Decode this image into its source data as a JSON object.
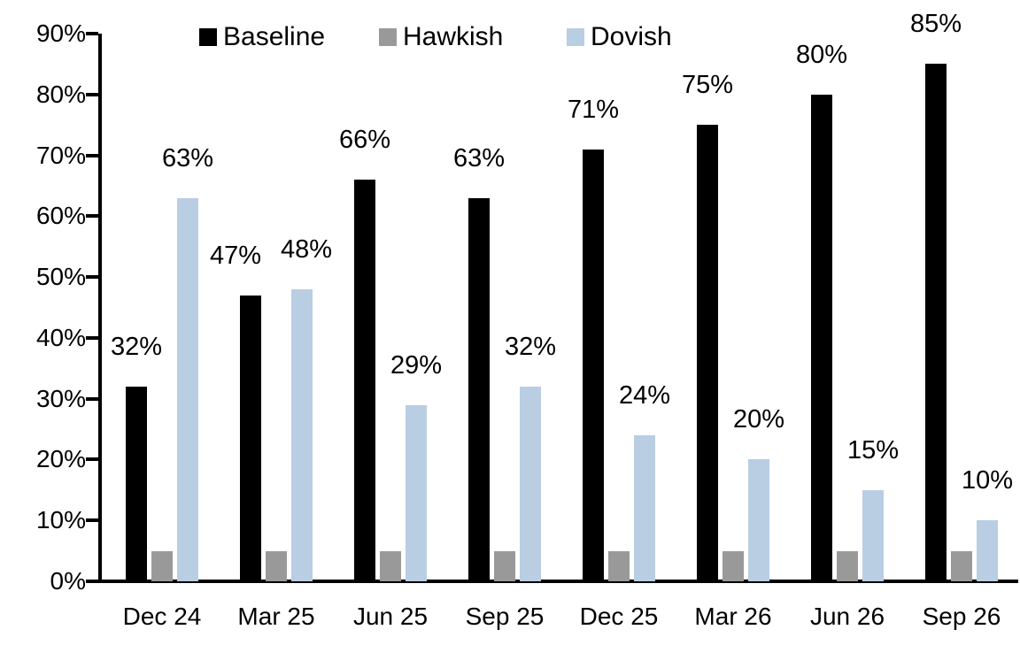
{
  "chart_data": {
    "type": "bar",
    "title": "",
    "categories": [
      "Dec 24",
      "Mar 25",
      "Jun 25",
      "Sep 25",
      "Dec 25",
      "Mar 26",
      "Jun 26",
      "Sep 26"
    ],
    "series": [
      {
        "name": "Baseline",
        "color": "#000000",
        "values": [
          32,
          47,
          66,
          63,
          71,
          75,
          80,
          85
        ],
        "data_labels": [
          "32%",
          "47%",
          "66%",
          "63%",
          "71%",
          "75%",
          "80%",
          "85%"
        ]
      },
      {
        "name": "Hawkish",
        "color": "#999999",
        "values": [
          5,
          5,
          5,
          5,
          5,
          5,
          5,
          5
        ],
        "data_labels": null,
        "values_note": "unlabeled, estimated from bar heights"
      },
      {
        "name": "Dovish",
        "color": "#b9cde3",
        "values": [
          63,
          48,
          29,
          32,
          24,
          20,
          15,
          10
        ],
        "data_labels": [
          "63%",
          "48%",
          "29%",
          "32%",
          "24%",
          "20%",
          "15%",
          "10%"
        ]
      }
    ],
    "xlabel": "",
    "ylabel": "",
    "ylim": [
      0,
      90
    ],
    "ytick_step": 10,
    "ytick_labels": [
      "0%",
      "10%",
      "20%",
      "30%",
      "40%",
      "50%",
      "60%",
      "70%",
      "80%",
      "90%"
    ],
    "legend_position": "top",
    "grid": false,
    "axis_color": "#000000",
    "background_color": "#ffffff"
  }
}
